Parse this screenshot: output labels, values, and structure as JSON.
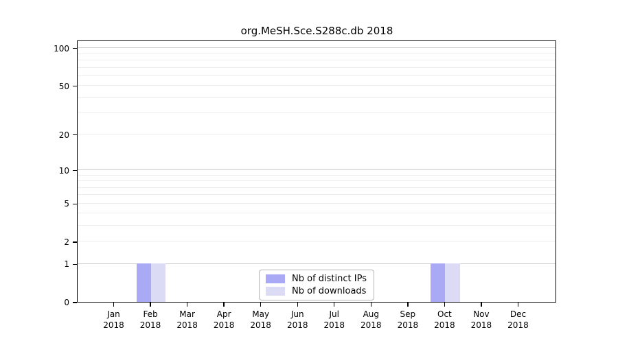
{
  "chart_data": {
    "type": "bar",
    "title": "org.MeSH.Sce.S288c.db 2018",
    "categories": [
      "Jan",
      "Feb",
      "Mar",
      "Apr",
      "May",
      "Jun",
      "Jul",
      "Aug",
      "Sep",
      "Oct",
      "Nov",
      "Dec"
    ],
    "category_year": "2018",
    "series": [
      {
        "name": "Nb of distinct IPs",
        "color": "#a9a9f5",
        "values": [
          0,
          1,
          0,
          0,
          0,
          0,
          0,
          0,
          0,
          1,
          0,
          0
        ]
      },
      {
        "name": "Nb of downloads",
        "color": "#dbdbf6",
        "values": [
          0,
          1,
          0,
          0,
          0,
          0,
          0,
          0,
          0,
          1,
          0,
          0
        ]
      }
    ],
    "xlabel": "",
    "ylabel": "",
    "y_scale": "log1p",
    "ylim": [
      0,
      113
    ],
    "y_ticks": [
      0,
      1,
      2,
      5,
      10,
      20,
      50,
      100
    ],
    "grid": {
      "major_values": [
        1,
        10,
        100
      ],
      "minor_values": [
        2,
        3,
        4,
        5,
        6,
        7,
        8,
        9,
        20,
        30,
        40,
        50,
        60,
        70,
        80,
        90
      ],
      "major_color": "#cccccc",
      "minor_color": "#ededed"
    },
    "legend_position": "lower center",
    "bar_group_width_fraction": 0.8,
    "axis_color": "#000000",
    "text_color": "#000000",
    "background_color": "#ffffff"
  }
}
